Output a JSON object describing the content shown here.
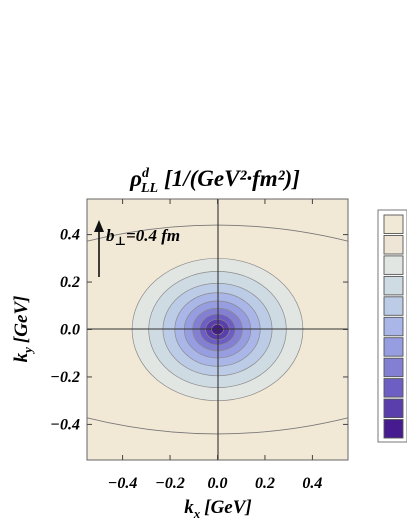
{
  "chart_data": {
    "type": "contour",
    "title": {
      "symbol": "ρ",
      "superscript": "d",
      "subscript": "LL",
      "units": "[1/(GeV²·fm²)]"
    },
    "xlabel": {
      "main": "k",
      "sub": "x",
      "units": "[GeV]"
    },
    "ylabel": {
      "main": "k",
      "sub": "y",
      "units": "[GeV]"
    },
    "xlim": [
      -0.55,
      0.55
    ],
    "ylim": [
      -0.55,
      0.55
    ],
    "xticks": [
      -0.4,
      -0.2,
      0.0,
      0.2,
      0.4
    ],
    "xtick_labels": [
      "−0.4",
      "−0.2",
      "0.0",
      "0.2",
      "0.4"
    ],
    "yticks": [
      -0.4,
      -0.2,
      0.0,
      0.2,
      0.4
    ],
    "ytick_labels": [
      "−0.4",
      "−0.2",
      "0.0",
      "0.2",
      "0.4"
    ],
    "annotation": {
      "vector": "b",
      "sub": "⊥",
      "text": "=0.4 fm"
    },
    "contour_center": [
      0.0,
      0.0
    ],
    "contour_half_widths": [
      [
        0.36,
        0.3
      ],
      [
        0.29,
        0.245
      ],
      [
        0.23,
        0.195
      ],
      [
        0.18,
        0.155
      ],
      [
        0.14,
        0.12
      ],
      [
        0.105,
        0.09
      ],
      [
        0.075,
        0.065
      ],
      [
        0.05,
        0.043
      ],
      [
        0.025,
        0.022
      ]
    ],
    "contour_fills": [
      "#e2e6e3",
      "#cfdbe3",
      "#bccbe6",
      "#a9b6e7",
      "#969de0",
      "#8380d4",
      "#6d5ec3",
      "#5a3eab",
      "#461b8f"
    ],
    "background_fill": "#f1e8d6",
    "outer_contour_y": [
      0.44,
      -0.44
    ],
    "legend_swatches": [
      "#f1e8d6",
      "#eee5d6",
      "#e2e6e3",
      "#cfdbe3",
      "#bccbe6",
      "#a9b6e7",
      "#969de0",
      "#8380d4",
      "#6d5ec3",
      "#5a3eab",
      "#461b8f"
    ],
    "grid": false,
    "legend_position": "right"
  }
}
